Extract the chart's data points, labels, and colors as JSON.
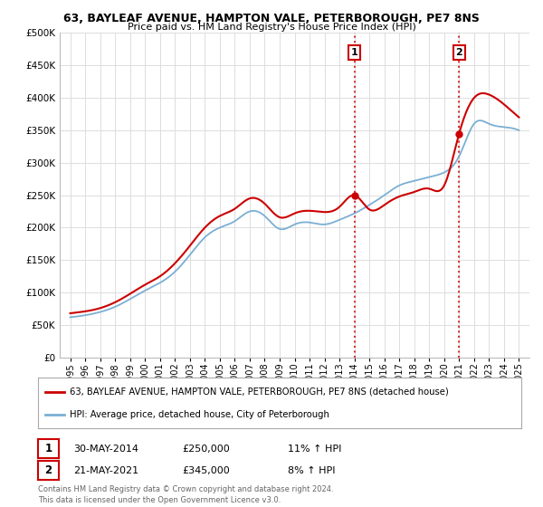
{
  "title_line1": "63, BAYLEAF AVENUE, HAMPTON VALE, PETERBOROUGH, PE7 8NS",
  "title_line2": "Price paid vs. HM Land Registry's House Price Index (HPI)",
  "legend_line1": "63, BAYLEAF AVENUE, HAMPTON VALE, PETERBOROUGH, PE7 8NS (detached house)",
  "legend_line2": "HPI: Average price, detached house, City of Peterborough",
  "annotation1_label": "1",
  "annotation1_date": "30-MAY-2014",
  "annotation1_price": "£250,000",
  "annotation1_hpi": "11% ↑ HPI",
  "annotation2_label": "2",
  "annotation2_date": "21-MAY-2021",
  "annotation2_price": "£345,000",
  "annotation2_hpi": "8% ↑ HPI",
  "footer": "Contains HM Land Registry data © Crown copyright and database right 2024.\nThis data is licensed under the Open Government Licence v3.0.",
  "red_color": "#cc0000",
  "blue_color": "#7bafd4",
  "vline_color": "#cc0000",
  "annotation_box_color": "#cc0000",
  "ylim": [
    0,
    500000
  ],
  "yticks": [
    0,
    50000,
    100000,
    150000,
    200000,
    250000,
    300000,
    350000,
    400000,
    450000,
    500000
  ],
  "background_color": "#ffffff",
  "grid_color": "#dddddd",
  "years": [
    1995,
    1996,
    1997,
    1998,
    1999,
    2000,
    2001,
    2002,
    2003,
    2004,
    2005,
    2006,
    2007,
    2008,
    2009,
    2010,
    2011,
    2012,
    2013,
    2014,
    2015,
    2016,
    2017,
    2018,
    2019,
    2020,
    2021,
    2022,
    2023,
    2024,
    2025
  ],
  "hpi_values": [
    62000,
    65000,
    70000,
    78000,
    90000,
    103000,
    115000,
    132000,
    158000,
    185000,
    200000,
    210000,
    225000,
    218000,
    198000,
    205000,
    208000,
    205000,
    212000,
    222000,
    235000,
    250000,
    265000,
    272000,
    278000,
    285000,
    310000,
    360000,
    360000,
    355000,
    350000
  ],
  "red_values": [
    68000,
    71000,
    76000,
    85000,
    98000,
    112000,
    125000,
    145000,
    172000,
    200000,
    218000,
    229000,
    245000,
    237000,
    216000,
    222000,
    226000,
    224000,
    232000,
    250000,
    228000,
    235000,
    248000,
    255000,
    260000,
    265000,
    345000,
    400000,
    405000,
    390000,
    370000
  ],
  "transaction1_year": 2014,
  "transaction1_price": 250000,
  "transaction2_year": 2021,
  "transaction2_price": 345000
}
